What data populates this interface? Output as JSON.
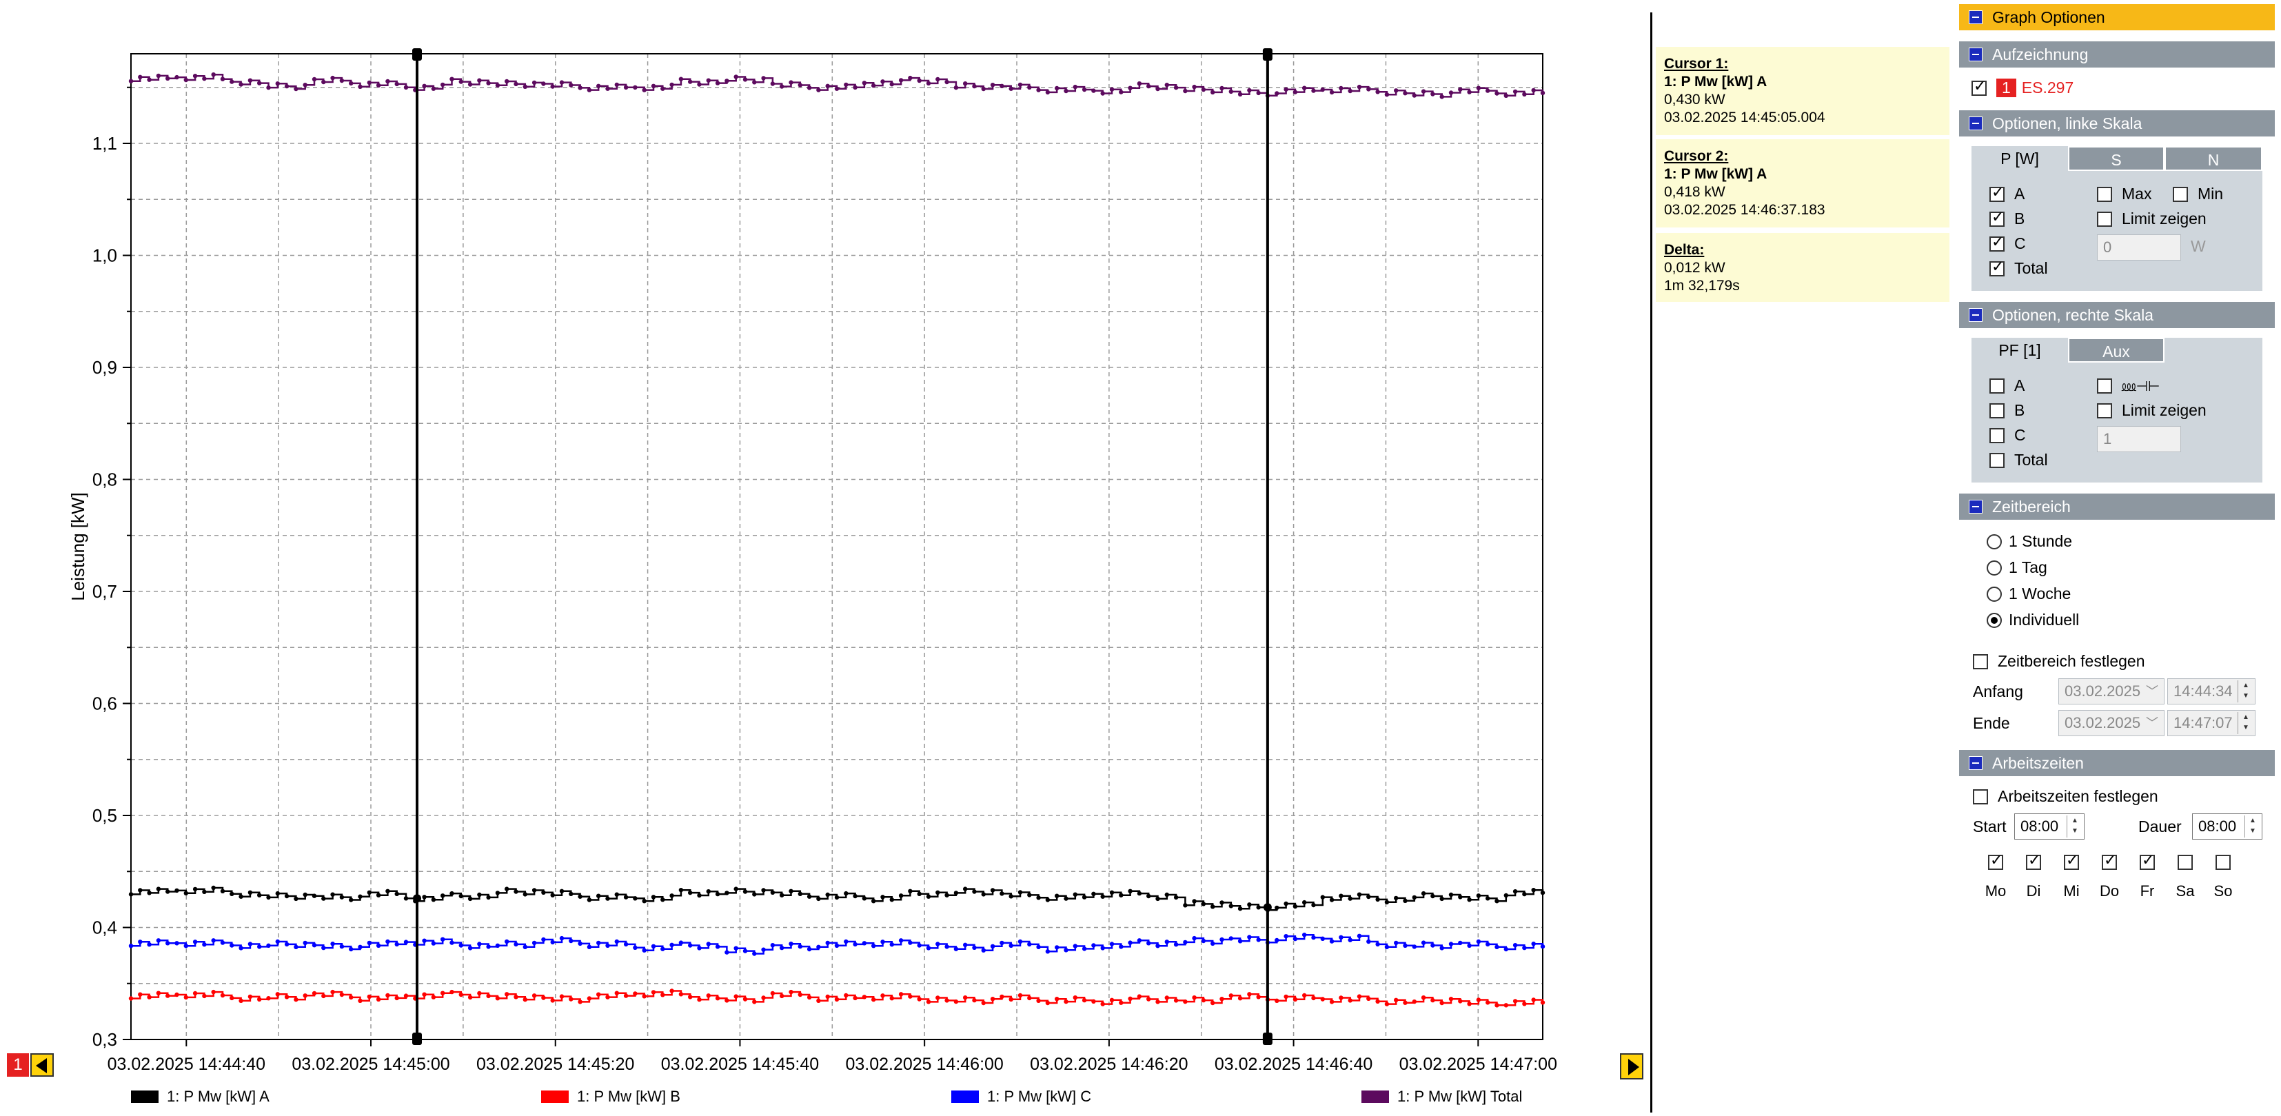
{
  "chart_data": {
    "type": "line",
    "ylabel": "Leistung [kW]",
    "ylim": [
      0.3,
      1.18
    ],
    "yticks": [
      "0,3",
      "0,4",
      "0,5",
      "0,6",
      "0,7",
      "0,8",
      "0,9",
      "1,0",
      "1,1"
    ],
    "xticks": [
      "03.02.2025 14:44:40",
      "03.02.2025 14:45:00",
      "03.02.2025 14:45:20",
      "03.02.2025 14:45:40",
      "03.02.2025 14:46:00",
      "03.02.2025 14:46:20",
      "03.02.2025 14:46:40",
      "03.02.2025 14:47:00"
    ],
    "x_start": "03.02.2025 14:44:34",
    "x_end": "03.02.2025 14:47:07",
    "grid": true,
    "cursors": [
      "03.02.2025 14:45:05.004",
      "03.02.2025 14:46:37.183"
    ],
    "series": [
      {
        "name": "1: P Mw [kW] A",
        "color": "#000000",
        "values": [
          0.432,
          0.433,
          0.43,
          0.428,
          0.427,
          0.43,
          0.426,
          0.428,
          0.432,
          0.43,
          0.427,
          0.426,
          0.431,
          0.432,
          0.43,
          0.428,
          0.426,
          0.43,
          0.432,
          0.429,
          0.427,
          0.43,
          0.428,
          0.421,
          0.418,
          0.42,
          0.427,
          0.425,
          0.428,
          0.426,
          0.431
        ]
      },
      {
        "name": "1: P Mw [kW] B",
        "color": "#ff0000",
        "values": [
          0.339,
          0.34,
          0.337,
          0.338,
          0.34,
          0.337,
          0.339,
          0.34,
          0.338,
          0.336,
          0.339,
          0.341,
          0.338,
          0.336,
          0.34,
          0.337,
          0.338,
          0.336,
          0.335,
          0.337,
          0.335,
          0.334,
          0.336,
          0.335,
          0.338,
          0.337,
          0.336,
          0.334,
          0.335,
          0.333,
          0.333
        ]
      },
      {
        "name": "1: P Mw [kW] C",
        "color": "#0000ff",
        "values": [
          0.386,
          0.386,
          0.384,
          0.385,
          0.383,
          0.385,
          0.387,
          0.384,
          0.385,
          0.388,
          0.385,
          0.382,
          0.384,
          0.379,
          0.383,
          0.385,
          0.386,
          0.384,
          0.382,
          0.385,
          0.381,
          0.384,
          0.386,
          0.388,
          0.389,
          0.391,
          0.39,
          0.385,
          0.384,
          0.385,
          0.383
        ]
      },
      {
        "name": "1: P Mw [kW] Total",
        "color": "#5c0a5e",
        "values": [
          1.158,
          1.159,
          1.155,
          1.151,
          1.156,
          1.153,
          1.15,
          1.155,
          1.153,
          1.152,
          1.15,
          1.15,
          1.155,
          1.157,
          1.152,
          1.15,
          1.154,
          1.156,
          1.151,
          1.15,
          1.148,
          1.147,
          1.151,
          1.148,
          1.145,
          1.147,
          1.148,
          1.146,
          1.144,
          1.147,
          1.145
        ]
      }
    ]
  },
  "nav": {
    "badge": "1"
  },
  "cursor1": {
    "heading": "Cursor 1:",
    "channel": "1: P Mw [kW] A",
    "value": "0,430 kW",
    "time": "03.02.2025 14:45:05.004"
  },
  "cursor2": {
    "heading": "Cursor 2:",
    "channel": "1: P Mw [kW] A",
    "value": "0,418 kW",
    "time": "03.02.2025 14:46:37.183"
  },
  "delta": {
    "heading": "Delta:",
    "value": "0,012 kW",
    "time": "1m 32,179s"
  },
  "panel": {
    "title": "Graph Optionen",
    "recording": {
      "header": "Aufzeichnung",
      "badge": "1",
      "name": "ES.297"
    },
    "left_scale": {
      "header": "Optionen, linke Skala",
      "tabs": [
        "P [W]",
        "S",
        "N"
      ],
      "phases": [
        "A",
        "B",
        "C",
        "Total"
      ],
      "max": "Max",
      "min": "Min",
      "limit": "Limit zeigen",
      "limit_value": "0",
      "unit": "W"
    },
    "right_scale": {
      "header": "Optionen, rechte Skala",
      "tabs": [
        "PF [1]",
        "Aux"
      ],
      "phases": [
        "A",
        "B",
        "C",
        "Total"
      ],
      "symbol": "⅏⊣⊢",
      "limit": "Limit zeigen",
      "limit_value": "1"
    },
    "time_range": {
      "header": "Zeitbereich",
      "options": [
        "1 Stunde",
        "1 Tag",
        "1 Woche",
        "Individuell"
      ],
      "fix_label": "Zeitbereich festlegen",
      "start_label": "Anfang",
      "start_date": "03.02.2025",
      "start_time": "14:44:34",
      "end_label": "Ende",
      "end_date": "03.02.2025",
      "end_time": "14:47:07"
    },
    "work_times": {
      "header": "Arbeitszeiten",
      "fix_label": "Arbeitszeiten festlegen",
      "start_label": "Start",
      "start_value": "08:00",
      "duration_label": "Dauer",
      "duration_value": "08:00",
      "days": [
        "Mo",
        "Di",
        "Mi",
        "Do",
        "Fr",
        "Sa",
        "So"
      ]
    }
  }
}
